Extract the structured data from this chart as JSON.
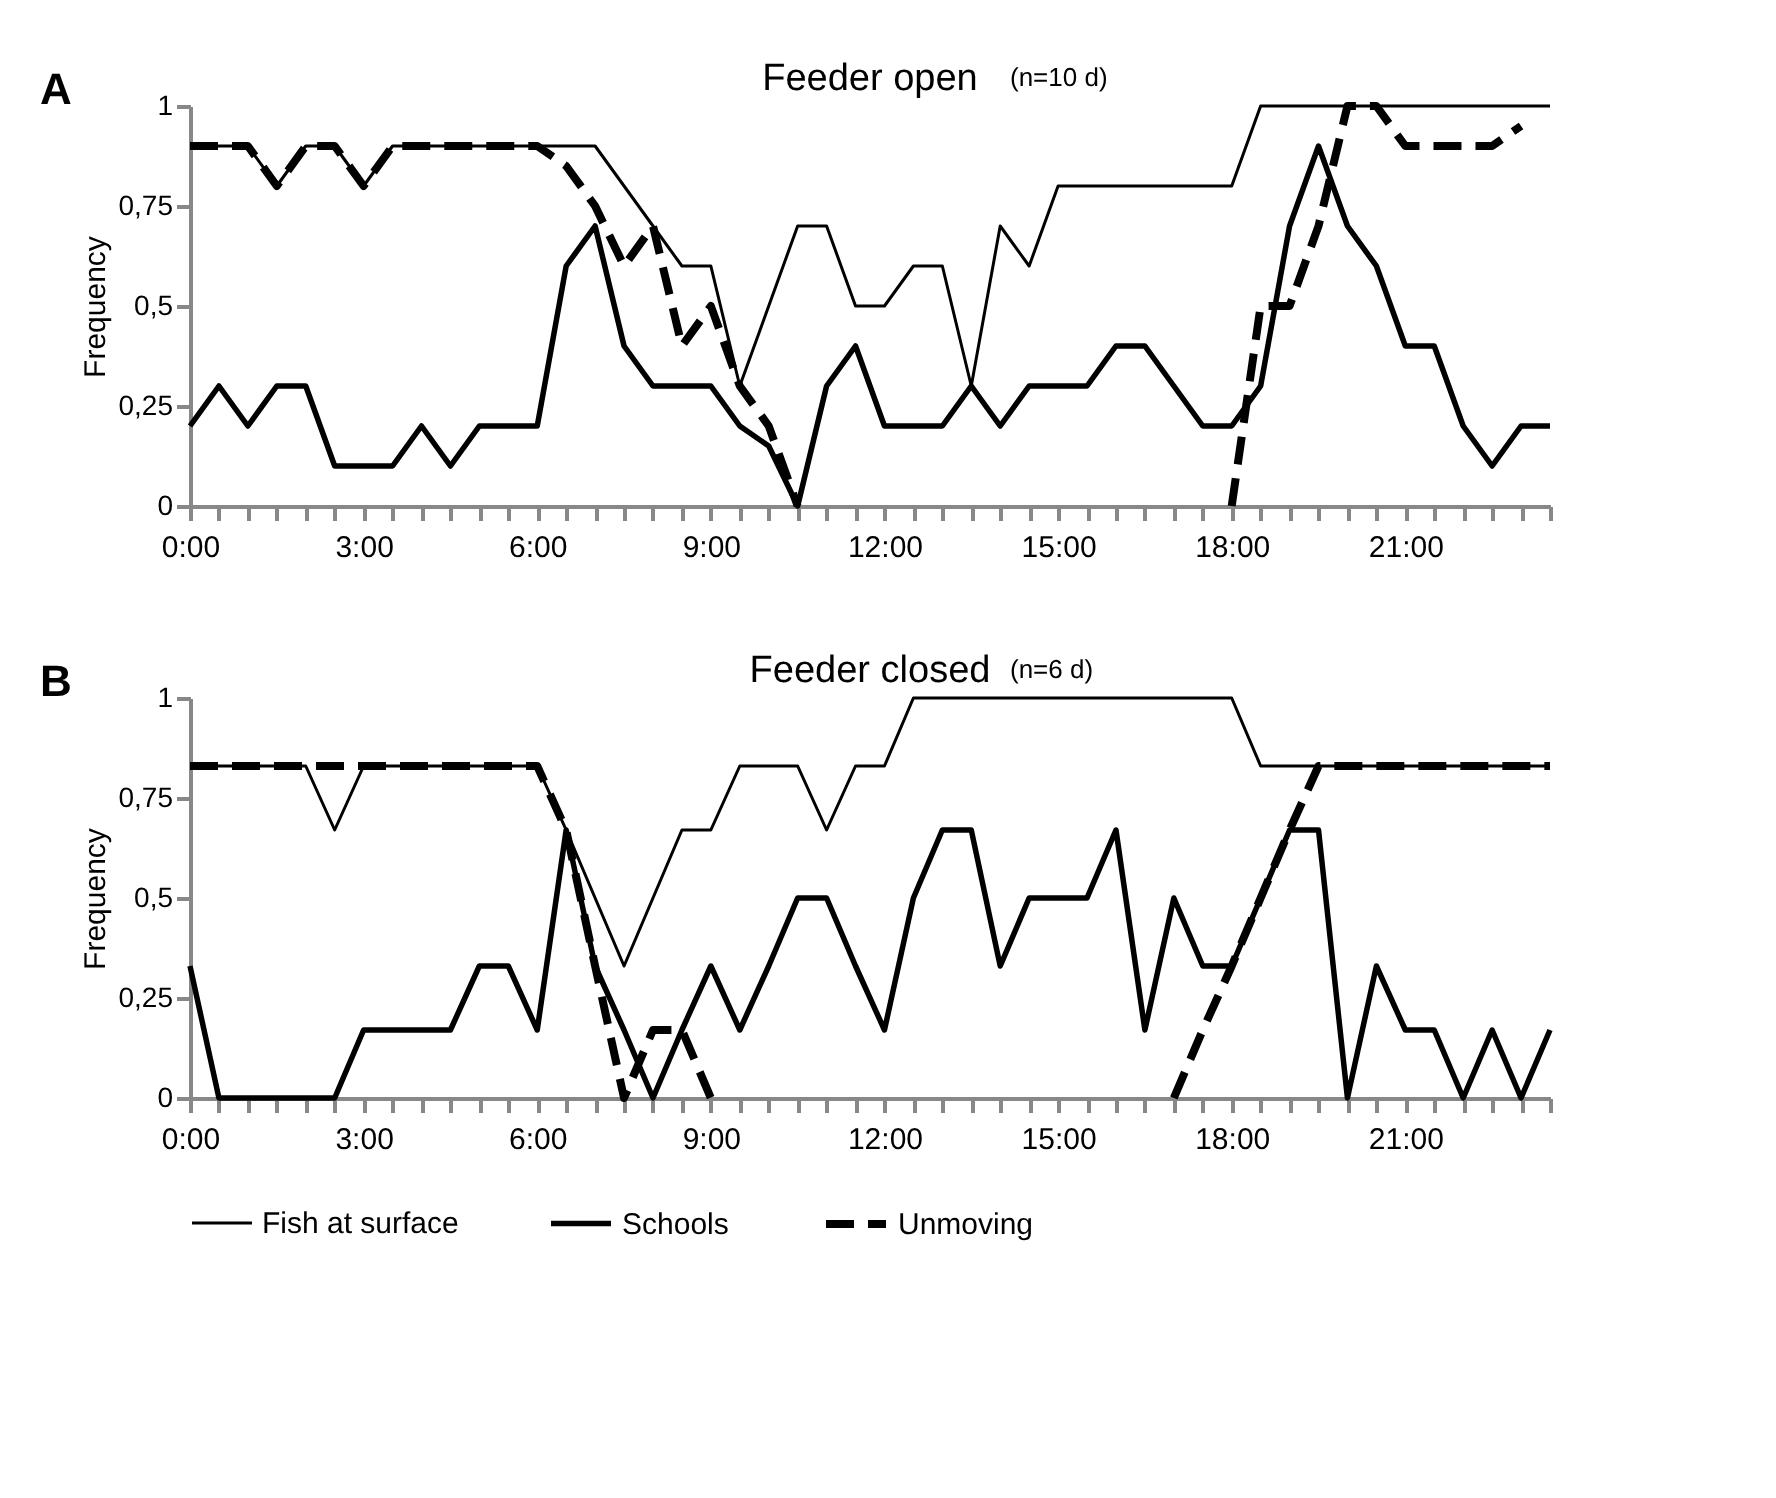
{
  "chart_data": [
    {
      "type": "line",
      "title": "Feeder open",
      "ylabel": "Frequency",
      "annotations": [
        "A",
        "(n=10 d)"
      ],
      "legend": "bottom",
      "x": [
        0,
        0.5,
        1,
        1.5,
        2,
        2.5,
        3,
        3.5,
        4,
        4.5,
        5,
        5.5,
        6,
        6.5,
        7,
        7.5,
        8,
        8.5,
        9,
        9.5,
        10,
        10.5,
        11,
        11.5,
        12,
        12.5,
        13,
        13.5,
        14,
        14.5,
        15,
        15.5,
        16,
        16.5,
        17,
        17.5,
        18,
        18.5,
        19,
        19.5,
        20,
        20.5,
        21,
        21.5,
        22,
        22.5,
        23,
        23.5
      ],
      "series": [
        {
          "name": "Fish at surface",
          "color": "#000000",
          "line_style": "solid",
          "values": [
            0.9,
            0.9,
            0.9,
            0.8,
            0.9,
            0.9,
            0.8,
            0.9,
            0.9,
            0.9,
            0.9,
            0.9,
            0.9,
            0.9,
            0.9,
            0.8,
            0.7,
            0.6,
            0.6,
            0.3,
            0.5,
            0.7,
            0.7,
            0.5,
            0.5,
            0.6,
            0.6,
            0.3,
            0.7,
            0.6,
            0.8,
            0.8,
            0.8,
            0.8,
            0.8,
            0.8,
            0.8,
            1,
            1,
            1,
            1,
            1,
            1,
            1,
            1,
            1,
            1,
            1
          ]
        },
        {
          "name": "Schools",
          "color": "#000000",
          "line_style": "solid",
          "values": [
            0.2,
            0.3,
            0.2,
            0.3,
            0.3,
            0.1,
            0.1,
            0.1,
            0.2,
            0.1,
            0.2,
            0.2,
            0.2,
            0.6,
            0.7,
            0.4,
            0.3,
            0.3,
            0.3,
            0.2,
            0.15,
            0,
            0.3,
            0.4,
            0.2,
            0.2,
            0.2,
            0.3,
            0.2,
            0.3,
            0.3,
            0.3,
            0.4,
            0.4,
            0.3,
            0.2,
            0.2,
            0.3,
            0.7,
            0.9,
            0.7,
            0.6,
            0.4,
            0.4,
            0.2,
            0.1,
            0.2,
            0.2
          ]
        },
        {
          "name": "Unmoving",
          "color": "#000000",
          "line_style": "dashed",
          "values": [
            0.9,
            0.9,
            0.9,
            0.8,
            0.9,
            0.9,
            0.8,
            0.9,
            0.9,
            0.9,
            0.9,
            0.9,
            0.9,
            0.85,
            0.75,
            0.6,
            0.7,
            0.4,
            0.5,
            0.3,
            0.2,
            0,
            null,
            null,
            null,
            null,
            null,
            null,
            null,
            null,
            null,
            null,
            null,
            null,
            null,
            null,
            0,
            0.5,
            0.5,
            0.7,
            1,
            1,
            0.9,
            0.9,
            0.9,
            0.9,
            0.95,
            null
          ]
        }
      ],
      "xlim": [
        0,
        23.5
      ],
      "ylim": [
        0,
        1
      ],
      "yticks": [
        0,
        {
          "value": 0.25,
          "label": "0,25"
        },
        {
          "value": 0.5,
          "label": "0,5"
        },
        {
          "value": 0.75,
          "label": "0,75"
        },
        1
      ],
      "xticks": [
        {
          "value": 0,
          "label": "0:00"
        },
        {
          "value": 0.5,
          "label": null
        },
        {
          "value": 1,
          "label": null
        },
        {
          "value": 1.5,
          "label": null
        },
        {
          "value": 2,
          "label": null
        },
        {
          "value": 2.5,
          "label": null
        },
        {
          "value": 3,
          "label": "3:00"
        },
        {
          "value": 3.5,
          "label": null
        },
        {
          "value": 4,
          "label": null
        },
        {
          "value": 4.5,
          "label": null
        },
        {
          "value": 5,
          "label": null
        },
        {
          "value": 5.5,
          "label": null
        },
        {
          "value": 6,
          "label": "6:00"
        },
        {
          "value": 6.5,
          "label": null
        },
        {
          "value": 7,
          "label": null
        },
        {
          "value": 7.5,
          "label": null
        },
        {
          "value": 8,
          "label": null
        },
        {
          "value": 8.5,
          "label": null
        },
        {
          "value": 9,
          "label": "9:00"
        },
        {
          "value": 9.5,
          "label": null
        },
        {
          "value": 10,
          "label": null
        },
        {
          "value": 10.5,
          "label": null
        },
        {
          "value": 11,
          "label": null
        },
        {
          "value": 11.5,
          "label": null
        },
        {
          "value": 12,
          "label": "12:00"
        },
        {
          "value": 12.5,
          "label": null
        },
        {
          "value": 13,
          "label": null
        },
        {
          "value": 13.5,
          "label": null
        },
        {
          "value": 14,
          "label": null
        },
        {
          "value": 14.5,
          "label": null
        },
        {
          "value": 15,
          "label": "15:00"
        },
        {
          "value": 15.5,
          "label": null
        },
        {
          "value": 16,
          "label": null
        },
        {
          "value": 16.5,
          "label": null
        },
        {
          "value": 17,
          "label": null
        },
        {
          "value": 17.5,
          "label": null
        },
        {
          "value": 18,
          "label": "18:00"
        },
        {
          "value": 18.5,
          "label": null
        },
        {
          "value": 19,
          "label": null
        },
        {
          "value": 19.5,
          "label": null
        },
        {
          "value": 20,
          "label": null
        },
        {
          "value": 20.5,
          "label": null
        },
        {
          "value": 21,
          "label": "21:00"
        },
        {
          "value": 21.5,
          "label": null
        },
        {
          "value": 22,
          "label": null
        },
        {
          "value": 22.5,
          "label": null
        },
        {
          "value": 23,
          "label": null
        },
        {
          "value": 23.5,
          "label": null
        }
      ]
    },
    {
      "type": "line",
      "title": "Feeder closed",
      "ylabel": "Frequency",
      "annotations": [
        "B",
        "(n=6 d)"
      ],
      "legend": "bottom",
      "x": [
        0,
        0.5,
        1,
        1.5,
        2,
        2.5,
        3,
        3.5,
        4,
        4.5,
        5,
        5.5,
        6,
        6.5,
        7,
        7.5,
        8,
        8.5,
        9,
        9.5,
        10,
        10.5,
        11,
        11.5,
        12,
        12.5,
        13,
        13.5,
        14,
        14.5,
        15,
        15.5,
        16,
        16.5,
        17,
        17.5,
        18,
        18.5,
        19,
        19.5,
        20,
        20.5,
        21,
        21.5,
        22,
        22.5,
        23,
        23.5
      ],
      "series": [
        {
          "name": "Fish at surface",
          "color": "#000000",
          "line_style": "solid",
          "values": [
            0.83,
            0.83,
            0.83,
            0.83,
            0.83,
            0.67,
            0.83,
            0.83,
            0.83,
            0.83,
            0.83,
            0.83,
            0.83,
            0.67,
            0.5,
            0.33,
            0.5,
            0.67,
            0.67,
            0.83,
            0.83,
            0.83,
            0.67,
            0.83,
            0.83,
            1,
            1,
            1,
            1,
            1,
            1,
            1,
            1,
            1,
            1,
            1,
            1,
            0.83,
            0.83,
            0.83,
            0.83,
            0.83,
            0.83,
            0.83,
            0.83,
            0.83,
            0.83,
            0.83
          ]
        },
        {
          "name": "Schools",
          "color": "#000000",
          "line_style": "solid",
          "values": [
            0.33,
            0,
            0,
            0,
            0,
            0,
            0.17,
            0.17,
            0.17,
            0.17,
            0.33,
            0.33,
            0.17,
            0.67,
            0.33,
            0.17,
            0,
            0.17,
            0.33,
            0.17,
            0.33,
            0.5,
            0.5,
            0.33,
            0.17,
            0.5,
            0.67,
            0.67,
            0.33,
            0.5,
            0.5,
            0.5,
            0.67,
            0.17,
            0.5,
            0.33,
            0.33,
            0.5,
            0.67,
            0.67,
            0,
            0.33,
            0.17,
            0.17,
            0,
            0.17,
            0,
            0.17
          ]
        },
        {
          "name": "Unmoving",
          "color": "#000000",
          "line_style": "dashed",
          "values": [
            0.83,
            0.83,
            0.83,
            0.83,
            0.83,
            0.83,
            0.83,
            0.83,
            0.83,
            0.83,
            0.83,
            0.83,
            0.83,
            0.67,
            0.33,
            0,
            0.17,
            0.17,
            0,
            null,
            null,
            null,
            null,
            null,
            null,
            null,
            null,
            null,
            null,
            null,
            null,
            null,
            null,
            null,
            0,
            0.17,
            0.33,
            0.5,
            0.67,
            0.83,
            0.83,
            0.83,
            0.83,
            0.83,
            0.83,
            0.83,
            0.83,
            0.83
          ]
        }
      ],
      "xlim": [
        0,
        23.5
      ],
      "ylim": [
        0,
        1
      ],
      "yticks": [
        0,
        {
          "value": 0.25,
          "label": "0,25"
        },
        {
          "value": 0.5,
          "label": "0,5"
        },
        {
          "value": 0.75,
          "label": "0,75"
        },
        1
      ],
      "xticks": [
        {
          "value": 0,
          "label": "0:00"
        },
        {
          "value": 0.5,
          "label": null
        },
        {
          "value": 1,
          "label": null
        },
        {
          "value": 1.5,
          "label": null
        },
        {
          "value": 2,
          "label": null
        },
        {
          "value": 2.5,
          "label": null
        },
        {
          "value": 3,
          "label": "3:00"
        },
        {
          "value": 3.5,
          "label": null
        },
        {
          "value": 4,
          "label": null
        },
        {
          "value": 4.5,
          "label": null
        },
        {
          "value": 5,
          "label": null
        },
        {
          "value": 5.5,
          "label": null
        },
        {
          "value": 6,
          "label": "6:00"
        },
        {
          "value": 6.5,
          "label": null
        },
        {
          "value": 7,
          "label": null
        },
        {
          "value": 7.5,
          "label": null
        },
        {
          "value": 8,
          "label": null
        },
        {
          "value": 8.5,
          "label": null
        },
        {
          "value": 9,
          "label": "9:00"
        },
        {
          "value": 9.5,
          "label": null
        },
        {
          "value": 10,
          "label": null
        },
        {
          "value": 10.5,
          "label": null
        },
        {
          "value": 11,
          "label": null
        },
        {
          "value": 11.5,
          "label": null
        },
        {
          "value": 12,
          "label": "12:00"
        },
        {
          "value": 12.5,
          "label": null
        },
        {
          "value": 13,
          "label": null
        },
        {
          "value": 13.5,
          "label": null
        },
        {
          "value": 14,
          "label": null
        },
        {
          "value": 14.5,
          "label": null
        },
        {
          "value": 15,
          "label": "15:00"
        },
        {
          "value": 15.5,
          "label": null
        },
        {
          "value": 16,
          "label": null
        },
        {
          "value": 16.5,
          "label": null
        },
        {
          "value": 17,
          "label": null
        },
        {
          "value": 17.5,
          "label": null
        },
        {
          "value": 18,
          "label": "18:00"
        },
        {
          "value": 18.5,
          "label": null
        },
        {
          "value": 19,
          "label": null
        },
        {
          "value": 19.5,
          "label": null
        },
        {
          "value": 20,
          "label": null
        },
        {
          "value": 20.5,
          "label": null
        },
        {
          "value": 21,
          "label": "21:00"
        },
        {
          "value": 21.5,
          "label": null
        },
        {
          "value": 22,
          "label": null
        },
        {
          "value": 22.5,
          "label": null
        },
        {
          "value": 23,
          "label": null
        },
        {
          "value": 23.5,
          "label": null
        }
      ]
    }
  ]
}
